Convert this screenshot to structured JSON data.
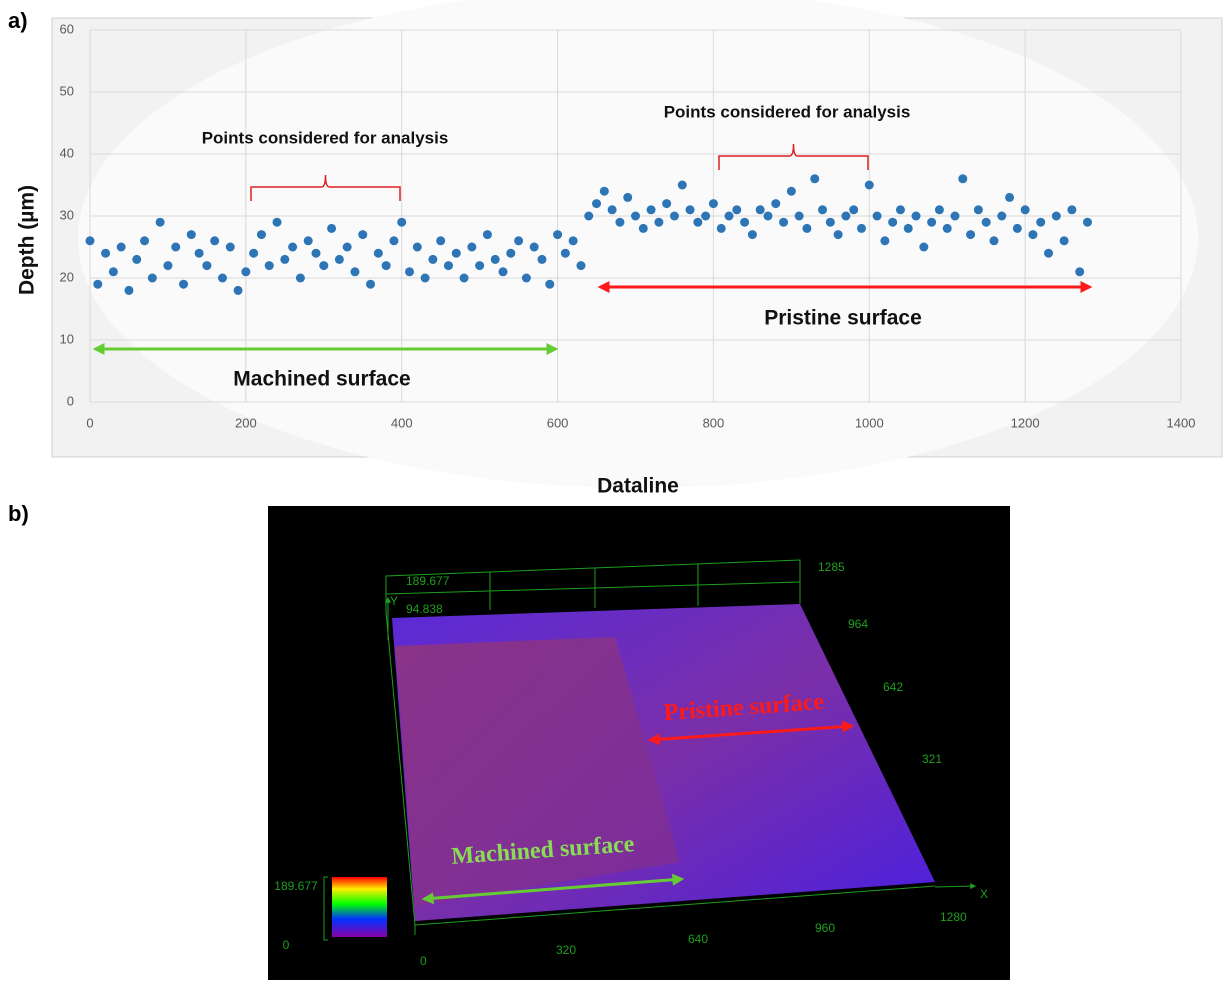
{
  "panel_labels": [
    "a)",
    "b)"
  ],
  "chart_data": {
    "type": "scatter",
    "xlabel": "Dataline",
    "ylabel": "Depth (µm)",
    "color": "#2e75b6",
    "grid": true,
    "xlim": [
      0,
      1400
    ],
    "ylim": [
      0,
      60
    ],
    "xticks": [
      0,
      200,
      400,
      600,
      800,
      1000,
      1200,
      1400
    ],
    "yticks": [
      0,
      10,
      20,
      30,
      40,
      50,
      60
    ],
    "x": [
      0,
      10,
      20,
      30,
      40,
      50,
      60,
      70,
      80,
      90,
      100,
      110,
      120,
      130,
      140,
      150,
      160,
      170,
      180,
      190,
      200,
      210,
      220,
      230,
      240,
      250,
      260,
      270,
      280,
      290,
      300,
      310,
      320,
      330,
      340,
      350,
      360,
      370,
      380,
      390,
      400,
      410,
      420,
      430,
      440,
      450,
      460,
      470,
      480,
      490,
      500,
      510,
      520,
      530,
      540,
      550,
      560,
      570,
      580,
      590,
      600,
      610,
      620,
      630,
      640,
      650,
      660,
      670,
      680,
      690,
      700,
      710,
      720,
      730,
      740,
      750,
      760,
      770,
      780,
      790,
      800,
      810,
      820,
      830,
      840,
      850,
      860,
      870,
      880,
      890,
      900,
      910,
      920,
      930,
      940,
      950,
      960,
      970,
      980,
      990,
      1000,
      1010,
      1020,
      1030,
      1040,
      1050,
      1060,
      1070,
      1080,
      1090,
      1100,
      1110,
      1120,
      1130,
      1140,
      1150,
      1160,
      1170,
      1180,
      1190,
      1200,
      1210,
      1220,
      1230,
      1240,
      1250,
      1260,
      1270,
      1280
    ],
    "values": [
      26,
      19,
      24,
      21,
      25,
      18,
      23,
      26,
      20,
      29,
      22,
      25,
      19,
      27,
      24,
      22,
      26,
      20,
      25,
      18,
      21,
      24,
      27,
      22,
      29,
      23,
      25,
      20,
      26,
      24,
      22,
      28,
      23,
      25,
      21,
      27,
      19,
      24,
      22,
      26,
      29,
      21,
      25,
      20,
      23,
      26,
      22,
      24,
      20,
      25,
      22,
      27,
      23,
      21,
      24,
      26,
      20,
      25,
      23,
      19,
      27,
      24,
      26,
      22,
      30,
      32,
      34,
      31,
      29,
      33,
      30,
      28,
      31,
      29,
      32,
      30,
      35,
      31,
      29,
      30,
      32,
      28,
      30,
      31,
      29,
      27,
      31,
      30,
      32,
      29,
      34,
      30,
      28,
      36,
      31,
      29,
      27,
      30,
      31,
      28,
      35,
      30,
      26,
      29,
      31,
      28,
      30,
      25,
      29,
      31,
      28,
      30,
      36,
      27,
      31,
      29,
      26,
      30,
      33,
      28,
      31,
      27,
      29,
      24,
      30,
      26,
      31,
      21,
      29
    ],
    "annotations": [
      "Points considered for analysis",
      "Points considered for analysis",
      "Machined surface",
      "Pristine surface"
    ]
  },
  "surface_view": {
    "axis_ticks": [
      "189.677",
      "94.838",
      "1285",
      "964",
      "642",
      "321",
      "0",
      "320",
      "640",
      "960",
      "1280"
    ],
    "axis_names": [
      "Y",
      "X"
    ],
    "colorbar_labels": [
      "189.677",
      "0"
    ],
    "region_labels": [
      "Pristine surface",
      "Machined surface"
    ]
  }
}
